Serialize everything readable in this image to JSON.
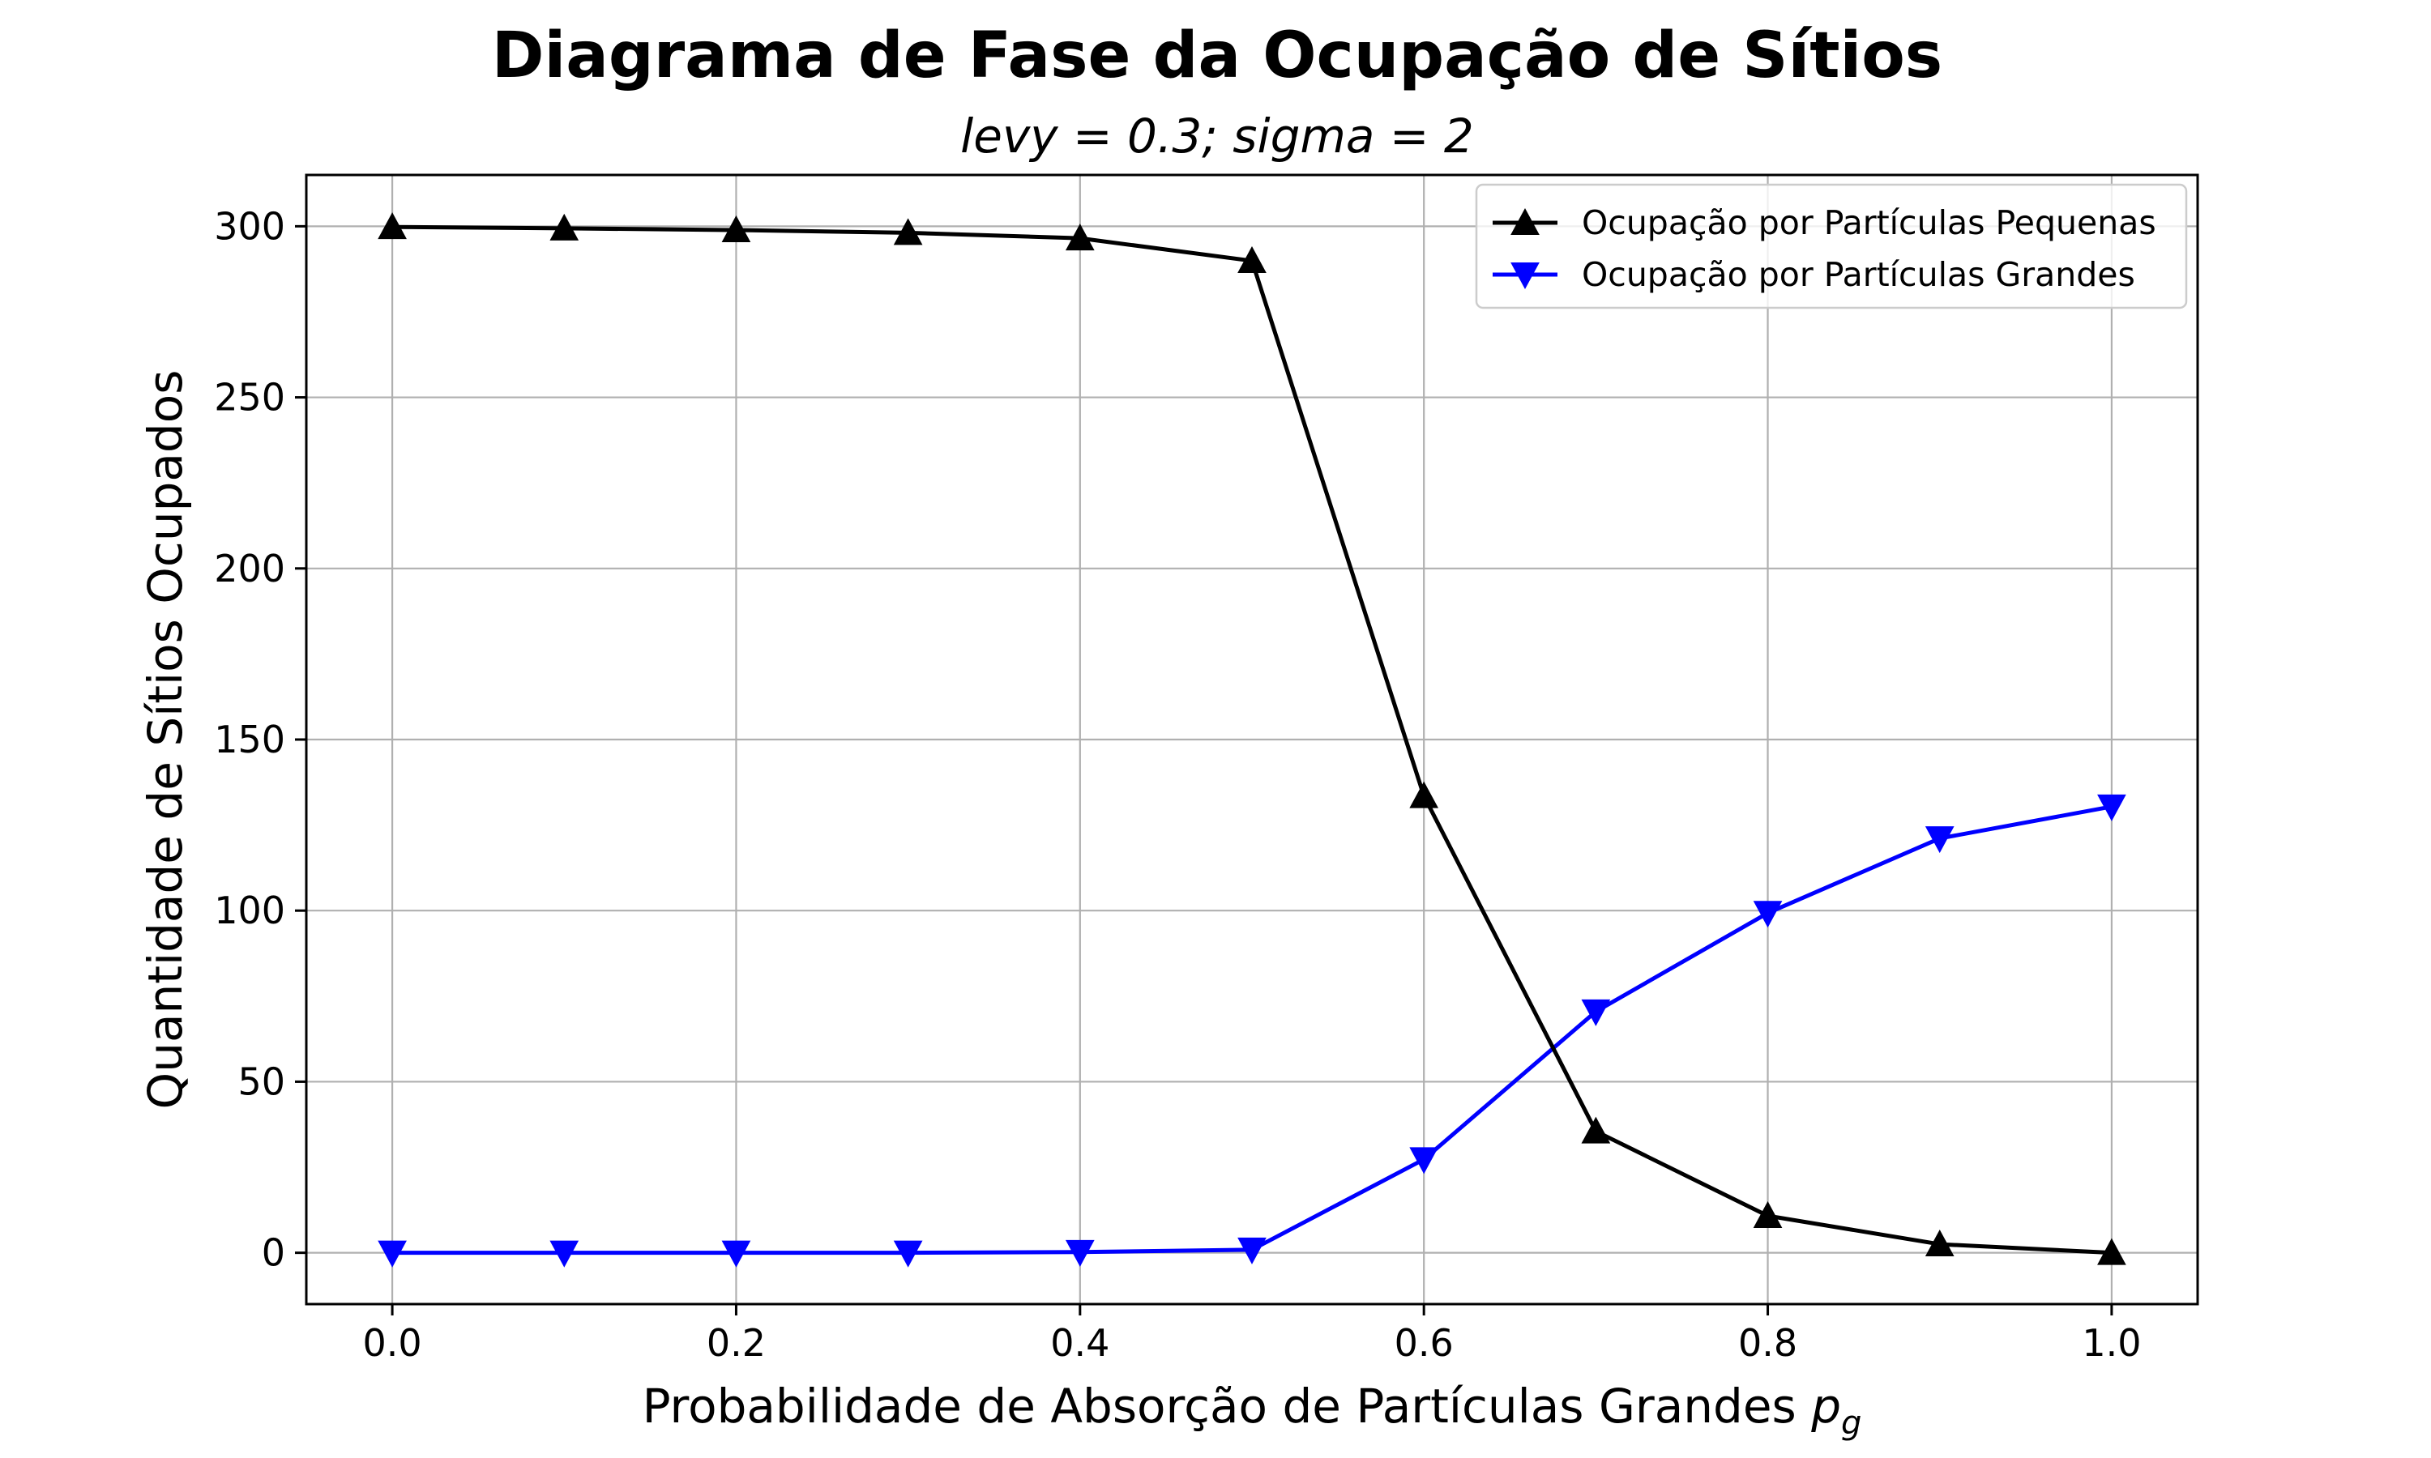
{
  "chart_data": {
    "type": "line",
    "title": "Diagrama de Fase da Ocupação de Sítios",
    "subtitle": "levy = 0.3; sigma = 2",
    "xlabel": "Probabilidade de Absorção de Partículas Grandes ",
    "xlabel_symbol": "p",
    "xlabel_subscript": "g",
    "ylabel": "Quantidade de Sítios Ocupados",
    "x": [
      0.0,
      0.1,
      0.2,
      0.3,
      0.4,
      0.5,
      0.6,
      0.7,
      0.8,
      0.9,
      1.0
    ],
    "xlim": [
      -0.05,
      1.05
    ],
    "ylim": [
      -15,
      315
    ],
    "xticks": [
      0.0,
      0.2,
      0.4,
      0.6,
      0.8,
      1.0
    ],
    "xtick_labels": [
      "0.0",
      "0.2",
      "0.4",
      "0.6",
      "0.8",
      "1.0"
    ],
    "yticks": [
      0,
      50,
      100,
      150,
      200,
      250,
      300
    ],
    "ytick_labels": [
      "0",
      "50",
      "100",
      "150",
      "200",
      "250",
      "300"
    ],
    "grid": true,
    "legend_position": "top-right",
    "series": [
      {
        "name": "Ocupação por Partículas Pequenas",
        "color": "#000000",
        "marker": "triangle-up",
        "values": [
          299.8,
          299.4,
          298.9,
          298.1,
          296.5,
          289.9,
          133.5,
          35.5,
          10.8,
          2.5,
          0
        ]
      },
      {
        "name": "Ocupação por Partículas Grandes",
        "color": "#0000ff",
        "marker": "triangle-down",
        "values": [
          0,
          0,
          0,
          0,
          0.2,
          0.9,
          27.3,
          70.5,
          99.3,
          121.1,
          130.4
        ]
      }
    ]
  }
}
